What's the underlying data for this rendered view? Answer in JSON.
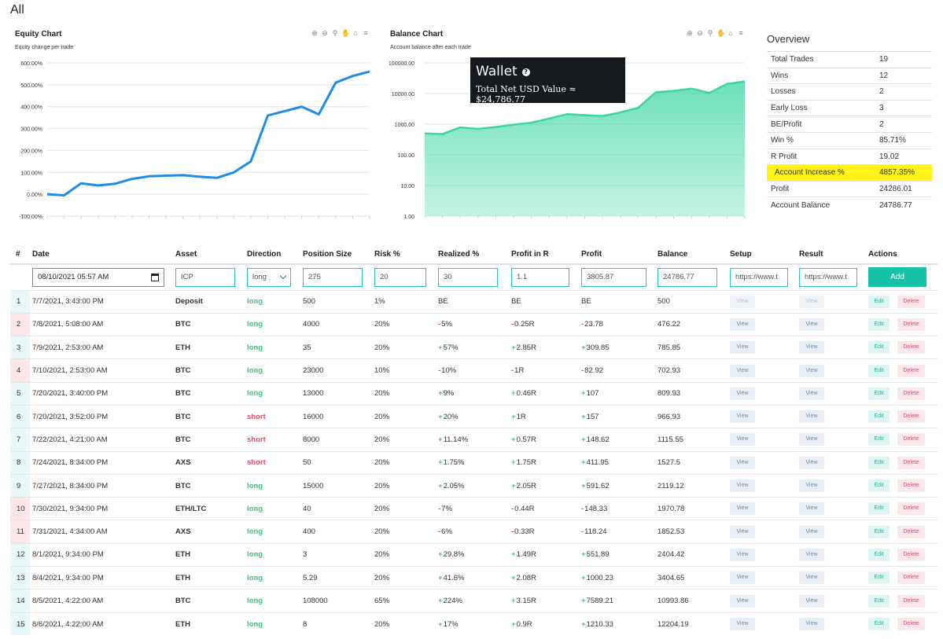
{
  "page": {
    "title": "All"
  },
  "equity_chart": {
    "title": "Equity Chart",
    "subtitle": "Equity change per trade",
    "toolbar": [
      "zoom-in-icon",
      "zoom-out-icon",
      "magnify-icon",
      "pan-hand-icon",
      "home-icon",
      "menu-icon"
    ]
  },
  "balance_chart": {
    "title": "Balance Chart",
    "subtitle": "Account balance after each trade",
    "toolbar": [
      "zoom-in-icon",
      "zoom-out-icon",
      "magnify-icon",
      "pan-hand-icon",
      "home-icon",
      "menu-icon"
    ]
  },
  "chart_data": [
    {
      "type": "line",
      "title": "Equity Chart",
      "subtitle": "Equity change per trade",
      "y_tick_labels": [
        "600.00%",
        "500.00%",
        "400.00%",
        "300.00%",
        "200.00%",
        "100.00%",
        "0.00%",
        "-100.00%"
      ],
      "ylim": [
        -100,
        600
      ],
      "y_unit": "%",
      "color": "#1e8ce6",
      "values": [
        0,
        -5,
        50,
        40,
        48,
        70,
        82,
        85,
        87,
        80,
        75,
        100,
        150,
        360,
        380,
        400,
        365,
        510,
        540,
        560
      ],
      "grid": true
    },
    {
      "type": "area",
      "title": "Balance Chart",
      "subtitle": "Account balance after each trade",
      "y_scale": "log",
      "y_tick_labels": [
        "100000.00",
        "10000.00",
        "1000.00",
        "100.00",
        "10.00",
        "1.00"
      ],
      "ylim": [
        1,
        100000
      ],
      "color": "#3bd6a0",
      "values": [
        500,
        476.22,
        785.85,
        702.93,
        809.93,
        966.93,
        1115.55,
        1527.5,
        2119.12,
        1970.78,
        1852.53,
        2404.42,
        3404.65,
        10993.86,
        12204.19,
        14500,
        10500,
        20500,
        24786.77
      ],
      "grid": true
    }
  ],
  "wallet": {
    "title": "Wallet",
    "info_icon": "question-circle-icon",
    "value_text": "Total Net USD Value ≈ $24,786.77"
  },
  "overview": {
    "title": "Overview",
    "rows": [
      {
        "label": "Total Trades",
        "value": "19"
      },
      {
        "label": "Wins",
        "value": "12"
      },
      {
        "label": "Losses",
        "value": "2"
      },
      {
        "label": "Early Loss",
        "value": "3"
      },
      {
        "label": "BE/Profit",
        "value": "2"
      },
      {
        "label": "Win %",
        "value": "85.71%"
      },
      {
        "label": "R Profit",
        "value": "19.02"
      },
      {
        "label": "Account Increase %",
        "value": "4857.35%",
        "highlight": true
      },
      {
        "label": "Profit",
        "value": "24286.01"
      },
      {
        "label": "Account Balance",
        "value": "24786.77"
      }
    ]
  },
  "table": {
    "headers": [
      "#",
      "Date",
      "Asset",
      "Direction",
      "Position Size",
      "Risk %",
      "Realized %",
      "Profit in R",
      "Profit",
      "Balance",
      "Setup",
      "Result",
      "Actions"
    ],
    "input_row": {
      "date": "08/10/2021 05:57 AM",
      "asset": "ICP",
      "direction": "long",
      "position_size": "275",
      "risk": "20",
      "realized": "30",
      "profit_r": "1.1",
      "profit": "3805.87",
      "balance": "24786.77",
      "setup": "https://www.t",
      "result": "https://www.t",
      "add_label": "Add"
    },
    "view_label": "View",
    "edit_label": "Edit",
    "delete_label": "Delete",
    "rows": [
      {
        "num": "1",
        "date": "7/7/2021, 3:43:00 PM",
        "asset": "Deposit",
        "direction": "long",
        "size": "500",
        "risk": "1%",
        "realized": "BE",
        "r": "BE",
        "profit": "BE",
        "balance": "500",
        "sign": "none",
        "row": "pos"
      },
      {
        "num": "2",
        "date": "7/8/2021, 5:08:00 AM",
        "asset": "BTC",
        "direction": "long",
        "size": "4000",
        "risk": "20%",
        "realized": "5%",
        "r": "0.25R",
        "profit": "23.78",
        "balance": "476.22",
        "sign": "neg",
        "row": "neg"
      },
      {
        "num": "3",
        "date": "7/9/2021, 2:53:00 AM",
        "asset": "ETH",
        "direction": "long",
        "size": "35",
        "risk": "20%",
        "realized": "57%",
        "r": "2.85R",
        "profit": "309.85",
        "balance": "785.85",
        "sign": "pos",
        "row": "pos"
      },
      {
        "num": "4",
        "date": "7/10/2021, 2:53:00 AM",
        "asset": "BTC",
        "direction": "long",
        "size": "23000",
        "risk": "10%",
        "realized": "10%",
        "r": "1R",
        "profit": "82.92",
        "balance": "702.93",
        "sign": "neg",
        "row": "neg"
      },
      {
        "num": "5",
        "date": "7/20/2021, 3:40:00 PM",
        "asset": "BTC",
        "direction": "long",
        "size": "13000",
        "risk": "20%",
        "realized": "9%",
        "r": "0.46R",
        "profit": "107",
        "balance": "809.93",
        "sign": "pos",
        "row": "pos"
      },
      {
        "num": "6",
        "date": "7/20/2021, 3:52:00 PM",
        "asset": "BTC",
        "direction": "short",
        "size": "16000",
        "risk": "20%",
        "realized": "20%",
        "r": "1R",
        "profit": "157",
        "balance": "966.93",
        "sign": "pos",
        "row": "pos"
      },
      {
        "num": "7",
        "date": "7/22/2021, 4:21:00 AM",
        "asset": "BTC",
        "direction": "short",
        "size": "8000",
        "risk": "20%",
        "realized": "11.14%",
        "r": "0.57R",
        "profit": "148.62",
        "balance": "1115.55",
        "sign": "pos",
        "row": "pos"
      },
      {
        "num": "8",
        "date": "7/24/2021, 8:34:00 PM",
        "asset": "AXS",
        "direction": "short",
        "size": "50",
        "risk": "20%",
        "realized": "1.75%",
        "r": "1.75R",
        "profit": "411.95",
        "balance": "1527.5",
        "sign": "pos",
        "row": "pos"
      },
      {
        "num": "9",
        "date": "7/27/2021, 8:34:00 PM",
        "asset": "BTC",
        "direction": "long",
        "size": "15000",
        "risk": "20%",
        "realized": "2.05%",
        "r": "2.05R",
        "profit": "591.62",
        "balance": "2119.12",
        "sign": "pos",
        "row": "pos"
      },
      {
        "num": "10",
        "date": "7/30/2021, 9:34:00 PM",
        "asset": "ETH/LTC",
        "direction": "long",
        "size": "40",
        "risk": "20%",
        "realized": "7%",
        "r": "0.44R",
        "profit": "148.33",
        "balance": "1970.78",
        "sign": "neg",
        "row": "neg"
      },
      {
        "num": "11",
        "date": "7/31/2021, 4:34:00 AM",
        "asset": "AXS",
        "direction": "long",
        "size": "400",
        "risk": "20%",
        "realized": "6%",
        "r": "0.33R",
        "profit": "118.24",
        "balance": "1852.53",
        "sign": "neg",
        "row": "neg"
      },
      {
        "num": "12",
        "date": "8/1/2021, 9:34:00 PM",
        "asset": "ETH",
        "direction": "long",
        "size": "3",
        "risk": "20%",
        "realized": "29.8%",
        "r": "1.49R",
        "profit": "551.89",
        "balance": "2404.42",
        "sign": "pos",
        "row": "pos"
      },
      {
        "num": "13",
        "date": "8/4/2021, 9:34:00 PM",
        "asset": "ETH",
        "direction": "long",
        "size": "5.29",
        "risk": "20%",
        "realized": "41.6%",
        "r": "2.08R",
        "profit": "1000.23",
        "balance": "3404.65",
        "sign": "pos",
        "row": "pos"
      },
      {
        "num": "14",
        "date": "8/5/2021, 4:22:00 AM",
        "asset": "BTC",
        "direction": "long",
        "size": "108000",
        "risk": "65%",
        "realized": "224%",
        "r": "3.15R",
        "profit": "7589.21",
        "balance": "10993.86",
        "sign": "pos",
        "row": "pos"
      },
      {
        "num": "15",
        "date": "8/6/2021, 4:22:00 AM",
        "asset": "ETH",
        "direction": "long",
        "size": "8",
        "risk": "20%",
        "realized": "17%",
        "r": "0.9R",
        "profit": "1210.33",
        "balance": "12204.19",
        "sign": "pos",
        "row": "pos"
      }
    ]
  }
}
